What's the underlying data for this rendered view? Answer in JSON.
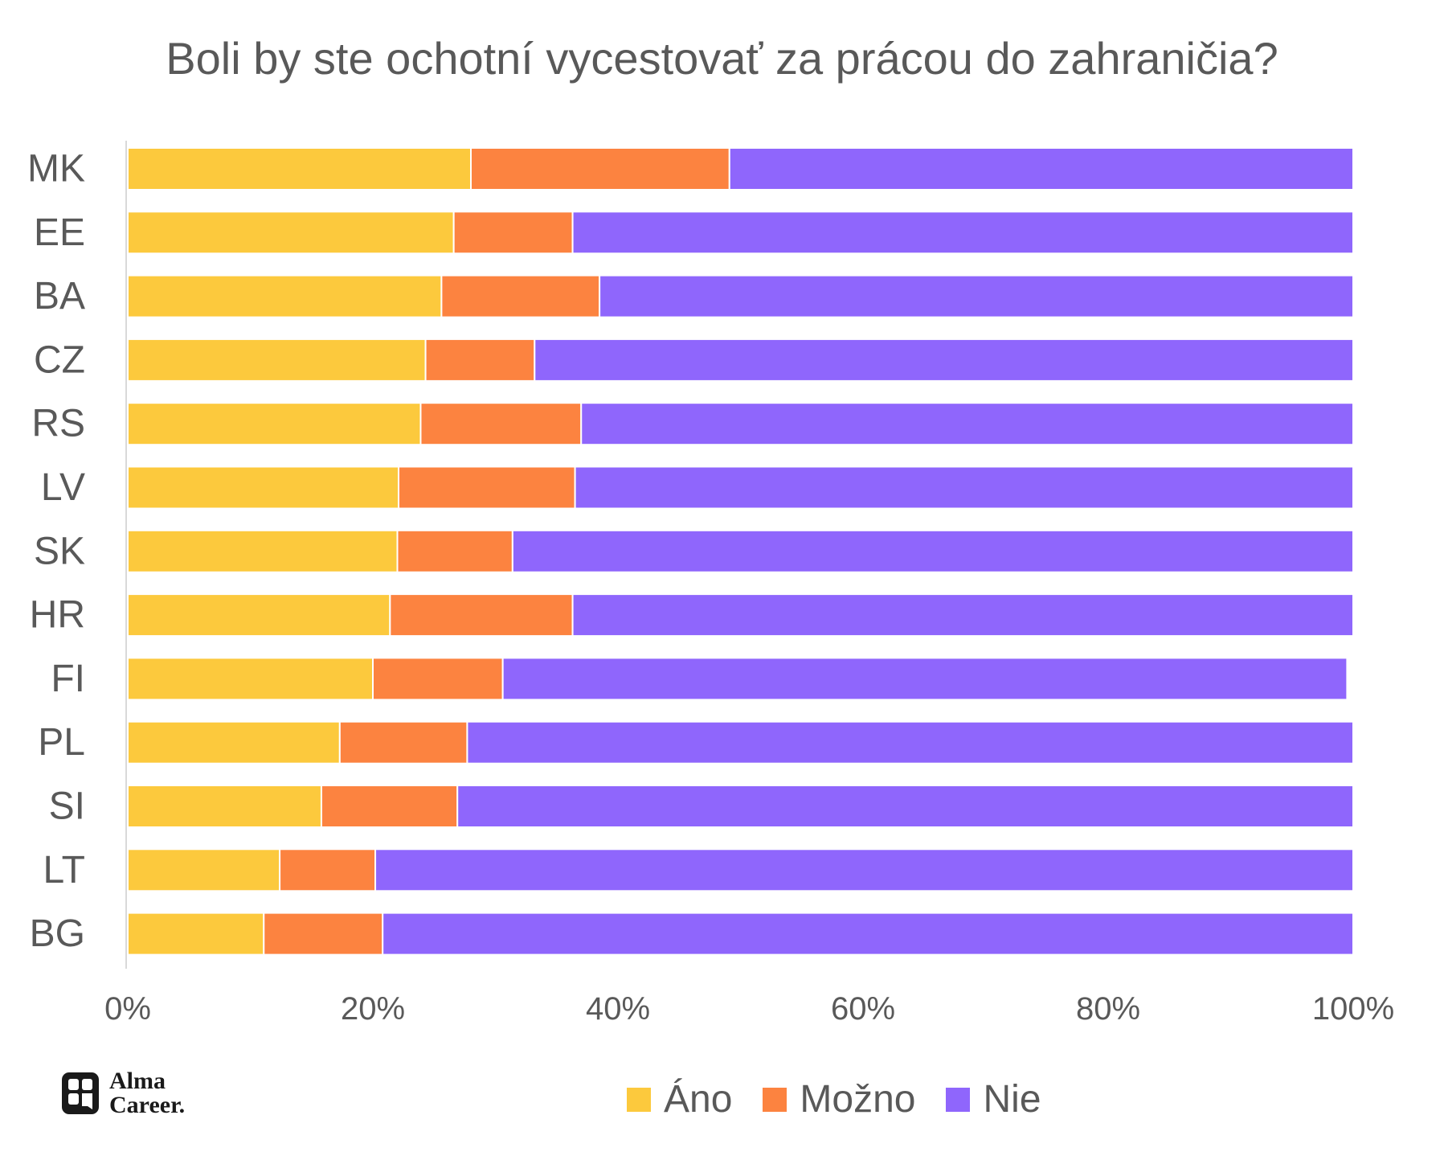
{
  "chart_data": {
    "type": "bar",
    "orientation": "horizontal",
    "stacked": true,
    "title": "Boli by ste ochotní vycestovať za prácou do zahraničia?",
    "categories": [
      "MK",
      "EE",
      "BA",
      "CZ",
      "RS",
      "LV",
      "SK",
      "HR",
      "FI",
      "PL",
      "SI",
      "LT",
      "BG"
    ],
    "series": [
      {
        "name": "Áno",
        "color": "#FCC93D",
        "values": [
          28,
          26.6,
          25.6,
          24.3,
          23.9,
          22.1,
          22,
          21.4,
          20,
          17.3,
          15.8,
          12.4,
          11.1
        ]
      },
      {
        "name": "Možno",
        "color": "#FC8340",
        "values": [
          21.1,
          9.7,
          12.9,
          8.9,
          13.1,
          14.4,
          9.4,
          14.9,
          10.6,
          10.4,
          11.1,
          7.8,
          9.7
        ]
      },
      {
        "name": "Nie",
        "color": "#8F66FC",
        "values": [
          50.9,
          63.7,
          61.5,
          66.8,
          63,
          63.5,
          68.6,
          63.7,
          68.9,
          72.3,
          73.1,
          79.8,
          79.2
        ]
      }
    ],
    "xlim": [
      0,
      100
    ],
    "xticks": [
      "0%",
      "20%",
      "40%",
      "60%",
      "80%",
      "100%"
    ],
    "xlabel": "",
    "ylabel": "",
    "grid": false,
    "legend_position": "bottom"
  },
  "logo": {
    "line1": "Alma",
    "line2": "Career."
  }
}
